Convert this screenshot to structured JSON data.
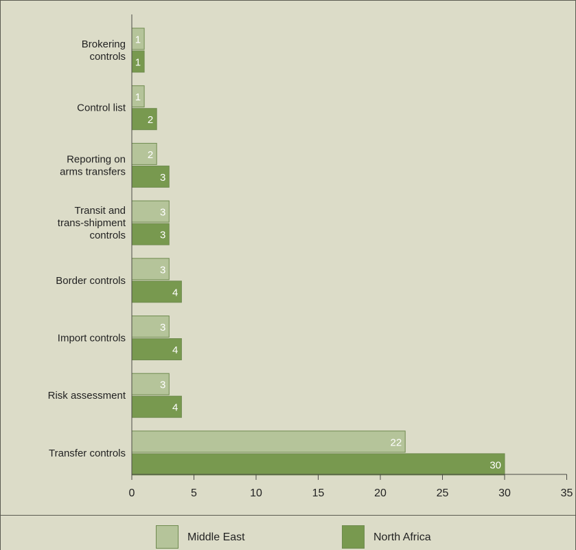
{
  "chart_data": {
    "type": "bar",
    "orientation": "horizontal",
    "categories": [
      "Brokering controls",
      "Control list",
      "Reporting on arms transfers",
      "Transit and trans-shipment controls",
      "Border controls",
      "Import controls",
      "Risk assessment",
      "Transfer controls"
    ],
    "category_lines": [
      [
        "Brokering",
        "controls"
      ],
      [
        "Control list"
      ],
      [
        "Reporting on",
        "arms transfers"
      ],
      [
        "Transit and",
        "trans-shipment",
        "controls"
      ],
      [
        "Border controls"
      ],
      [
        "Import controls"
      ],
      [
        "Risk assessment"
      ],
      [
        "Transfer controls"
      ]
    ],
    "series": [
      {
        "name": "Middle East",
        "values": [
          1,
          1,
          2,
          3,
          3,
          3,
          3,
          22
        ],
        "color": "#b5c49a"
      },
      {
        "name": "North Africa",
        "values": [
          1,
          2,
          3,
          3,
          4,
          4,
          4,
          30
        ],
        "color": "#78994f"
      }
    ],
    "xlim": [
      0,
      35
    ],
    "xticks": [
      0,
      5,
      10,
      15,
      20,
      25,
      30,
      35
    ],
    "grid": false,
    "legend_position": "bottom",
    "data_labels": true
  },
  "colors": {
    "background": "#dcdcc8",
    "axis": "#4a4a44",
    "bar_border": "#6e8a4e",
    "data_label": "#ffffff"
  }
}
